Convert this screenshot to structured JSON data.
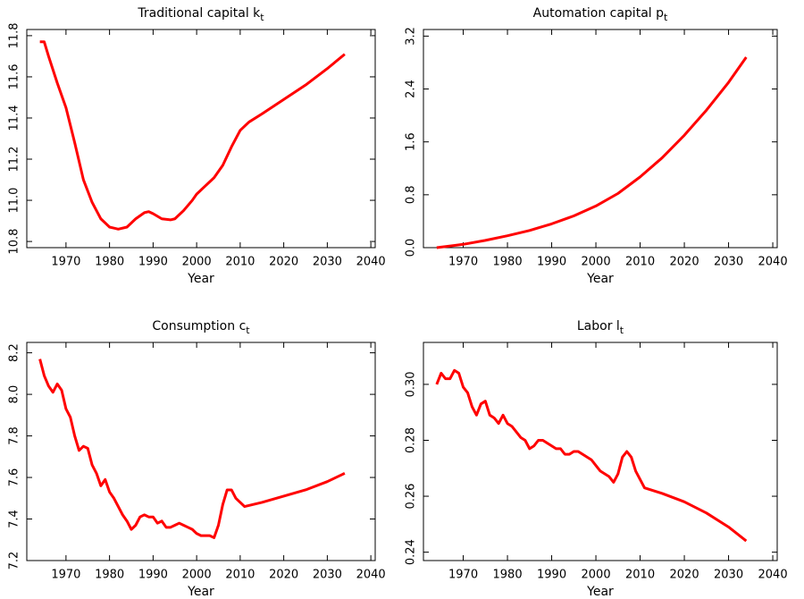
{
  "chart_data": [
    {
      "type": "line",
      "title": "Traditional capital k",
      "title_subscript": "t",
      "xlabel": "Year",
      "color": "#ff0000",
      "x": [
        1964,
        1965,
        1966,
        1968,
        1970,
        1972,
        1974,
        1976,
        1978,
        1980,
        1982,
        1984,
        1986,
        1988,
        1989,
        1990,
        1992,
        1994,
        1995,
        1997,
        1999,
        2000,
        2002,
        2004,
        2006,
        2008,
        2010,
        2012,
        2015,
        2020,
        2025,
        2030,
        2034
      ],
      "values": [
        11.77,
        11.77,
        11.7,
        11.57,
        11.45,
        11.28,
        11.1,
        10.99,
        10.91,
        10.87,
        10.86,
        10.87,
        10.91,
        10.94,
        10.945,
        10.935,
        10.91,
        10.905,
        10.91,
        10.95,
        11.0,
        11.03,
        11.07,
        11.11,
        11.17,
        11.26,
        11.34,
        11.38,
        11.42,
        11.49,
        11.56,
        11.64,
        11.71
      ],
      "xlim": [
        1961,
        2041
      ],
      "xticks": [
        1970,
        1980,
        1990,
        2000,
        2010,
        2020,
        2030,
        2040
      ],
      "ylim": [
        10.77,
        11.83
      ],
      "yticks": [
        {
          "value": 10.8,
          "label": "10.8"
        },
        {
          "value": 11,
          "label": "11.0"
        },
        11.2,
        11.4,
        11.6,
        11.8
      ]
    },
    {
      "type": "line",
      "title": "Automation capital p",
      "title_subscript": "t",
      "xlabel": "Year",
      "color": "#ff0000",
      "x": [
        1964,
        1970,
        1975,
        1980,
        1985,
        1990,
        1995,
        2000,
        2005,
        2010,
        2015,
        2020,
        2025,
        2030,
        2034
      ],
      "values": [
        0,
        0.05,
        0.11,
        0.18,
        0.26,
        0.36,
        0.48,
        0.63,
        0.82,
        1.07,
        1.36,
        1.7,
        2.08,
        2.5,
        2.88
      ],
      "xlim": [
        1961,
        2041
      ],
      "xticks": [
        1970,
        1980,
        1990,
        2000,
        2010,
        2020,
        2030,
        2040
      ],
      "ylim": [
        0,
        3.3
      ],
      "yticks": [
        {
          "value": 0,
          "label": "0.0"
        },
        0.8,
        1.6,
        2.4,
        3.2
      ]
    },
    {
      "type": "line",
      "title": "Consumption c",
      "title_subscript": "t",
      "xlabel": "Year",
      "color": "#ff0000",
      "x": [
        1964,
        1965,
        1966,
        1967,
        1968,
        1969,
        1970,
        1971,
        1972,
        1973,
        1974,
        1975,
        1976,
        1977,
        1978,
        1979,
        1980,
        1981,
        1982,
        1983,
        1984,
        1985,
        1986,
        1987,
        1988,
        1989,
        1990,
        1991,
        1992,
        1993,
        1994,
        1995,
        1996,
        1997,
        1998,
        1999,
        2000,
        2001,
        2002,
        2003,
        2004,
        2005,
        2006,
        2007,
        2008,
        2009,
        2010,
        2011,
        2015,
        2020,
        2025,
        2030,
        2034
      ],
      "values": [
        8.17,
        8.09,
        8.04,
        8.01,
        8.05,
        8.02,
        7.93,
        7.89,
        7.8,
        7.73,
        7.75,
        7.74,
        7.66,
        7.62,
        7.56,
        7.59,
        7.53,
        7.5,
        7.46,
        7.42,
        7.39,
        7.35,
        7.37,
        7.41,
        7.42,
        7.41,
        7.41,
        7.38,
        7.39,
        7.36,
        7.36,
        7.37,
        7.38,
        7.37,
        7.36,
        7.35,
        7.33,
        7.32,
        7.32,
        7.32,
        7.31,
        7.37,
        7.47,
        7.54,
        7.54,
        7.5,
        7.48,
        7.46,
        7.48,
        7.51,
        7.54,
        7.58,
        7.62
      ],
      "xlim": [
        1961,
        2041
      ],
      "xticks": [
        1970,
        1980,
        1990,
        2000,
        2010,
        2020,
        2030,
        2040
      ],
      "ylim": [
        7.2,
        8.25
      ],
      "yticks": [
        7.2,
        7.4,
        7.6,
        7.8,
        {
          "value": 8,
          "label": "8.0"
        },
        8.2
      ]
    },
    {
      "type": "line",
      "title": "Labor l",
      "title_subscript": "t",
      "xlabel": "Year",
      "color": "#ff0000",
      "x": [
        1964,
        1965,
        1966,
        1967,
        1968,
        1969,
        1970,
        1971,
        1972,
        1973,
        1974,
        1975,
        1976,
        1977,
        1978,
        1979,
        1980,
        1981,
        1982,
        1983,
        1984,
        1985,
        1986,
        1987,
        1988,
        1989,
        1990,
        1991,
        1992,
        1993,
        1994,
        1995,
        1996,
        1997,
        1998,
        1999,
        2000,
        2001,
        2002,
        2003,
        2004,
        2005,
        2006,
        2007,
        2008,
        2009,
        2010,
        2011,
        2015,
        2020,
        2025,
        2030,
        2034
      ],
      "values": [
        0.3,
        0.304,
        0.302,
        0.302,
        0.305,
        0.304,
        0.299,
        0.297,
        0.292,
        0.289,
        0.293,
        0.294,
        0.289,
        0.288,
        0.286,
        0.289,
        0.286,
        0.285,
        0.283,
        0.281,
        0.28,
        0.277,
        0.278,
        0.28,
        0.28,
        0.279,
        0.278,
        0.277,
        0.277,
        0.275,
        0.275,
        0.276,
        0.276,
        0.275,
        0.274,
        0.273,
        0.271,
        0.269,
        0.268,
        0.267,
        0.265,
        0.268,
        0.274,
        0.276,
        0.274,
        0.269,
        0.266,
        0.263,
        0.261,
        0.258,
        0.254,
        0.249,
        0.244
      ],
      "xlim": [
        1961,
        2041
      ],
      "xticks": [
        1970,
        1980,
        1990,
        2000,
        2010,
        2020,
        2030,
        2040
      ],
      "ylim": [
        0.237,
        0.315
      ],
      "yticks": [
        0.24,
        0.26,
        0.28,
        {
          "value": 0.3,
          "label": "0.30"
        }
      ]
    }
  ]
}
